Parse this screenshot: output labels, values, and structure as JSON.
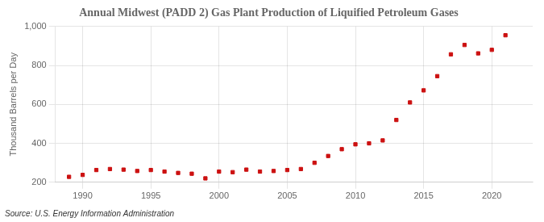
{
  "chart_data": {
    "type": "scatter",
    "title": "Annual Midwest (PADD 2) Gas Plant Production of Liquified Petroleum Gases",
    "ylabel": "Thousand Barrels per Day",
    "annotation": "Source: U.S. Energy Information Administration",
    "x": [
      1989,
      1990,
      1991,
      1992,
      1993,
      1994,
      1995,
      1996,
      1997,
      1998,
      1999,
      2000,
      2001,
      2002,
      2003,
      2004,
      2005,
      2006,
      2007,
      2008,
      2009,
      2010,
      2011,
      2012,
      2013,
      2014,
      2015,
      2016,
      2017,
      2018,
      2019,
      2020,
      2021
    ],
    "values": [
      228,
      238,
      263,
      268,
      265,
      258,
      263,
      255,
      248,
      244,
      220,
      255,
      252,
      265,
      255,
      258,
      263,
      268,
      300,
      335,
      370,
      395,
      400,
      415,
      520,
      610,
      672,
      745,
      857,
      905,
      862,
      880,
      955
    ],
    "color": "#cc1111",
    "marker": "square",
    "xlim": [
      1988.0,
      2023.0
    ],
    "xticks": [
      1990,
      1995,
      2000,
      2005,
      2010,
      2015,
      2020
    ],
    "ylim": [
      200,
      1000
    ],
    "yticks": [
      200,
      400,
      600,
      800,
      {
        "value": 1000,
        "label": "1,000"
      }
    ],
    "grid": true
  }
}
